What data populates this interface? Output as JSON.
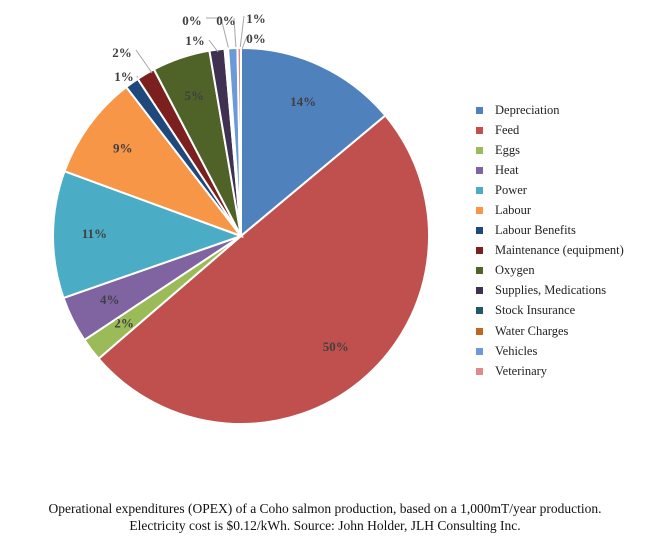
{
  "chart_data": {
    "type": "pie",
    "slices": [
      {
        "name": "Depreciation",
        "value": 14,
        "label": "14%",
        "color": "#4f81bd"
      },
      {
        "name": "Feed",
        "value": 50,
        "label": "50%",
        "color": "#c0504d"
      },
      {
        "name": "Eggs",
        "value": 2,
        "label": "2%",
        "color": "#9bbb59"
      },
      {
        "name": "Heat",
        "value": 4,
        "label": "4%",
        "color": "#8064a2"
      },
      {
        "name": "Power",
        "value": 11,
        "label": "11%",
        "color": "#4bacc6"
      },
      {
        "name": "Labour",
        "value": 9,
        "label": "9%",
        "color": "#f79646"
      },
      {
        "name": "Labour Benefits",
        "value": 1.2,
        "label": "1%",
        "color": "#1f497d"
      },
      {
        "name": "Maintenance (equipment)",
        "value": 1.6,
        "label": "2%",
        "color": "#7b1f1f"
      },
      {
        "name": "Oxygen",
        "value": 5,
        "label": "5%",
        "color": "#4f6228"
      },
      {
        "name": "Supplies, Medications",
        "value": 1.3,
        "label": "1%",
        "color": "#3f3151"
      },
      {
        "name": "Stock Insurance",
        "value": 0.15,
        "label": "0%",
        "color": "#215968"
      },
      {
        "name": "Water Charges",
        "value": 0.15,
        "label": "0%",
        "color": "#c0661f"
      },
      {
        "name": "Vehicles",
        "value": 0.8,
        "label": "1%",
        "color": "#6a9bd8"
      },
      {
        "name": "Veterinary",
        "value": 0.3,
        "label": "0%",
        "color": "#e08a8a"
      }
    ],
    "legend_position": "right"
  },
  "caption": {
    "line1": "Operational expenditures (OPEX) of a Coho salmon production, based on a 1,000mT/year production.",
    "line2": "Electricity  cost is $0.12/kWh. Source: John Holder, JLH Consulting Inc."
  }
}
